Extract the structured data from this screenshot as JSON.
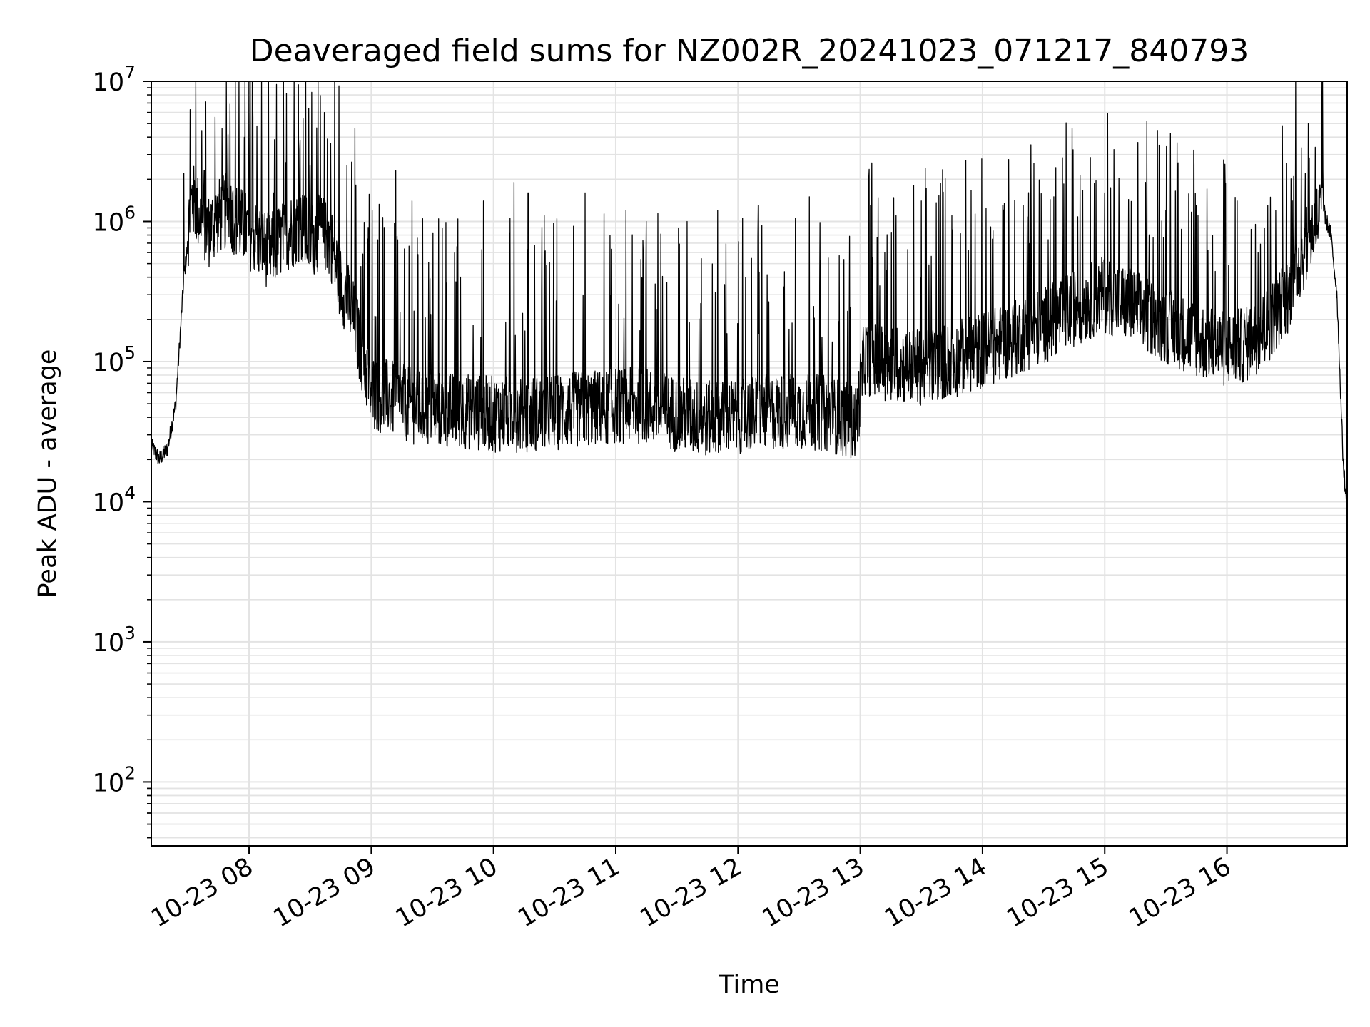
{
  "chart_data": {
    "type": "line",
    "title": "Deaveraged field sums for NZ002R_20241023_071217_840793",
    "xlabel": "Time",
    "ylabel": "Peak ADU - average",
    "yscale": "log",
    "ylim": [
      35,
      10000000
    ],
    "xlim": [
      "2024-10-23 07:12",
      "2024-10-23 16:59"
    ],
    "grid": "on (major and minor, both axes)",
    "x_tick_labels": [
      "10-23 08",
      "10-23 09",
      "10-23 10",
      "10-23 11",
      "10-23 12",
      "10-23 13",
      "10-23 14",
      "10-23 15",
      "10-23 16"
    ],
    "y_tick_labels": [
      {
        "base": "10",
        "exp": "2"
      },
      {
        "base": "10",
        "exp": "3"
      },
      {
        "base": "10",
        "exp": "4"
      },
      {
        "base": "10",
        "exp": "5"
      },
      {
        "base": "10",
        "exp": "6"
      },
      {
        "base": "10",
        "exp": "7"
      }
    ],
    "line_color": "#000000",
    "grid_color": "#e3e3e3",
    "series": [
      {
        "x": [
          "2024-10-23 07:12",
          "2024-10-23 07:16",
          "2024-10-23 07:20",
          "2024-10-23 07:24",
          "2024-10-23 07:28",
          "2024-10-23 07:32",
          "2024-10-23 07:36",
          "2024-10-23 07:40",
          "2024-10-23 07:45",
          "2024-10-23 07:50",
          "2024-10-23 07:55",
          "2024-10-23 08:00",
          "2024-10-23 08:05",
          "2024-10-23 08:10",
          "2024-10-23 08:15",
          "2024-10-23 08:20",
          "2024-10-23 08:25",
          "2024-10-23 08:30",
          "2024-10-23 08:35",
          "2024-10-23 08:40",
          "2024-10-23 08:45",
          "2024-10-23 08:50",
          "2024-10-23 08:55",
          "2024-10-23 09:00",
          "2024-10-23 09:10",
          "2024-10-23 09:20",
          "2024-10-23 09:30",
          "2024-10-23 09:40",
          "2024-10-23 09:50",
          "2024-10-23 10:00",
          "2024-10-23 10:15",
          "2024-10-23 10:30",
          "2024-10-23 10:45",
          "2024-10-23 11:00",
          "2024-10-23 11:15",
          "2024-10-23 11:30",
          "2024-10-23 11:45",
          "2024-10-23 12:00",
          "2024-10-23 12:15",
          "2024-10-23 12:30",
          "2024-10-23 12:45",
          "2024-10-23 12:58",
          "2024-10-23 13:02",
          "2024-10-23 13:15",
          "2024-10-23 13:30",
          "2024-10-23 13:45",
          "2024-10-23 14:00",
          "2024-10-23 14:15",
          "2024-10-23 14:30",
          "2024-10-23 14:45",
          "2024-10-23 15:00",
          "2024-10-23 15:15",
          "2024-10-23 15:30",
          "2024-10-23 15:45",
          "2024-10-23 16:00",
          "2024-10-23 16:10",
          "2024-10-23 16:20",
          "2024-10-23 16:30",
          "2024-10-23 16:35",
          "2024-10-23 16:40",
          "2024-10-23 16:45",
          "2024-10-23 16:48",
          "2024-10-23 16:51",
          "2024-10-23 16:54",
          "2024-10-23 16:57",
          "2024-10-23 16:59"
        ],
        "y": [
          25000,
          20000,
          24000,
          50000,
          400000,
          1200000,
          900000,
          700000,
          900000,
          1000000,
          800000,
          700000,
          600000,
          500000,
          600000,
          700000,
          800000,
          600000,
          700000,
          600000,
          300000,
          200000,
          100000,
          50000,
          45000,
          40000,
          38000,
          37000,
          36000,
          35000,
          35000,
          36000,
          38000,
          40000,
          40000,
          35000,
          32000,
          34000,
          36000,
          37000,
          35000,
          30000,
          90000,
          80000,
          75000,
          85000,
          100000,
          120000,
          150000,
          200000,
          250000,
          200000,
          150000,
          120000,
          100000,
          110000,
          150000,
          250000,
          400000,
          600000,
          900000,
          1100000,
          800000,
          300000,
          20000,
          8000
        ]
      }
    ],
    "spikes": {
      "x": [
        "2024-10-23 07:28",
        "2024-10-23 07:38",
        "2024-10-23 07:52",
        "2024-10-23 08:12",
        "2024-10-23 08:22",
        "2024-10-23 08:30",
        "2024-10-23 08:37",
        "2024-10-23 08:52",
        "2024-10-23 09:12",
        "2024-10-23 09:20",
        "2024-10-23 09:55",
        "2024-10-23 10:10",
        "2024-10-23 10:17",
        "2024-10-23 10:45",
        "2024-10-23 11:05",
        "2024-10-23 11:15",
        "2024-10-23 11:35",
        "2024-10-23 11:50",
        "2024-10-23 12:10",
        "2024-10-23 12:35",
        "2024-10-23 13:05",
        "2024-10-23 13:30",
        "2024-10-23 13:45",
        "2024-10-23 14:10",
        "2024-10-23 14:20",
        "2024-10-23 14:35",
        "2024-10-23 14:44",
        "2024-10-23 15:00",
        "2024-10-23 15:20",
        "2024-10-23 15:30",
        "2024-10-23 15:45",
        "2024-10-23 16:05",
        "2024-10-23 16:20",
        "2024-10-23 16:32",
        "2024-10-23 16:40"
      ],
      "y": [
        2200000,
        2300000,
        1600000,
        1600000,
        1500000,
        2500000,
        6000000,
        4600000,
        2300000,
        1400000,
        1400000,
        1900000,
        1600000,
        1600000,
        1200000,
        1000000,
        1000000,
        1200000,
        1300000,
        1500000,
        1300000,
        1400000,
        1100000,
        1300000,
        1300000,
        1500000,
        4600000,
        1600000,
        1900000,
        1200000,
        1300000,
        1400000,
        1300000,
        1400000,
        5000000
      ]
    }
  }
}
